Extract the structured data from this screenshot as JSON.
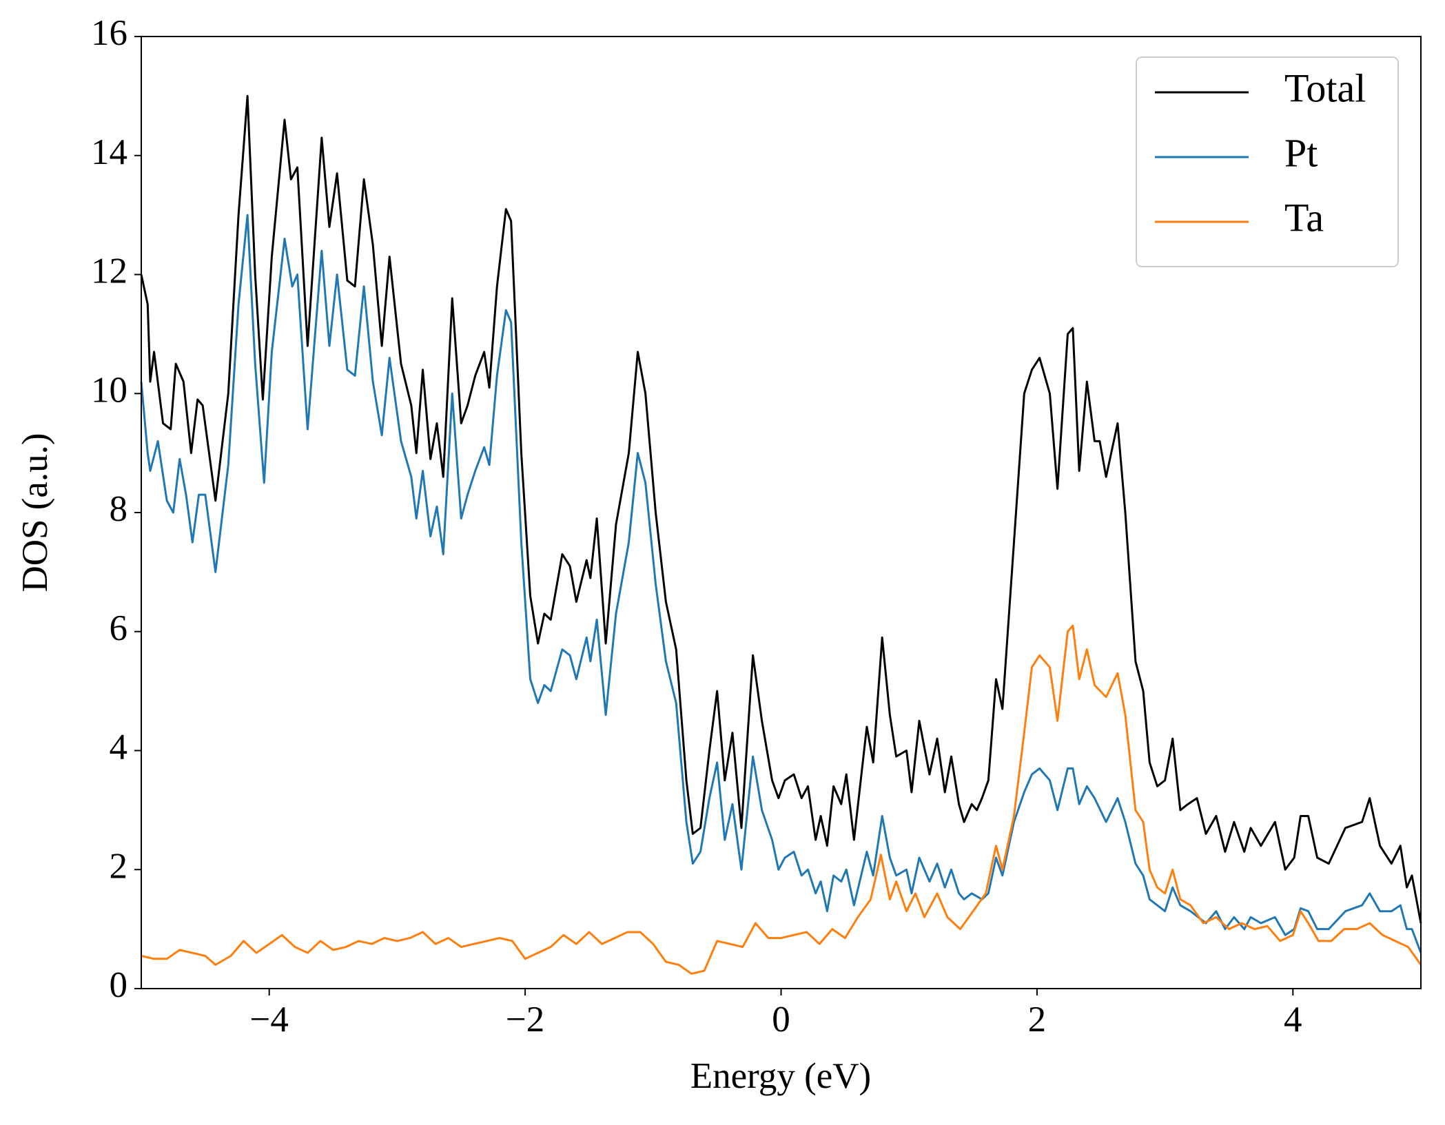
{
  "chart_data": {
    "type": "line",
    "xlabel": "Energy (eV)",
    "ylabel": "DOS (a.u.)",
    "xlim": [
      -5,
      5
    ],
    "ylim": [
      0,
      16
    ],
    "xticks": [
      {
        "value": -4,
        "label": "−4"
      },
      {
        "value": -2,
        "label": "−2"
      },
      0,
      2,
      4
    ],
    "yticks": [
      0,
      2,
      4,
      6,
      8,
      10,
      12,
      14,
      16
    ],
    "grid": false,
    "legend": "upper right",
    "series": [
      {
        "name": "Total",
        "color": "#000000",
        "x": [
          -5.0,
          -4.95,
          -4.93,
          -4.9,
          -4.83,
          -4.77,
          -4.73,
          -4.67,
          -4.61,
          -4.56,
          -4.52,
          -4.42,
          -4.32,
          -4.24,
          -4.17,
          -4.11,
          -4.05,
          -3.98,
          -3.88,
          -3.83,
          -3.78,
          -3.7,
          -3.59,
          -3.53,
          -3.47,
          -3.39,
          -3.33,
          -3.26,
          -3.19,
          -3.12,
          -3.06,
          -2.97,
          -2.89,
          -2.85,
          -2.8,
          -2.74,
          -2.69,
          -2.64,
          -2.57,
          -2.5,
          -2.45,
          -2.39,
          -2.32,
          -2.28,
          -2.22,
          -2.15,
          -2.11,
          -2.03,
          -1.96,
          -1.9,
          -1.85,
          -1.8,
          -1.71,
          -1.65,
          -1.6,
          -1.52,
          -1.49,
          -1.44,
          -1.37,
          -1.29,
          -1.19,
          -1.12,
          -1.06,
          -0.98,
          -0.9,
          -0.82,
          -0.74,
          -0.69,
          -0.63,
          -0.56,
          -0.5,
          -0.44,
          -0.38,
          -0.31,
          -0.22,
          -0.15,
          -0.07,
          -0.02,
          0.03,
          0.1,
          0.16,
          0.21,
          0.27,
          0.31,
          0.36,
          0.41,
          0.47,
          0.51,
          0.57,
          0.67,
          0.72,
          0.79,
          0.85,
          0.9,
          0.98,
          1.02,
          1.08,
          1.16,
          1.22,
          1.28,
          1.33,
          1.39,
          1.43,
          1.49,
          1.53,
          1.57,
          1.62,
          1.68,
          1.73,
          1.82,
          1.9,
          1.96,
          2.02,
          2.06,
          2.1,
          2.16,
          2.24,
          2.28,
          2.33,
          2.39,
          2.45,
          2.49,
          2.54,
          2.63,
          2.69,
          2.77,
          2.83,
          2.88,
          2.94,
          3.0,
          3.06,
          3.12,
          3.18,
          3.25,
          3.32,
          3.4,
          3.47,
          3.54,
          3.62,
          3.67,
          3.75,
          3.86,
          3.94,
          4.01,
          4.06,
          4.12,
          4.19,
          4.28,
          4.41,
          4.54,
          4.6,
          4.68,
          4.77,
          4.84,
          4.89,
          4.93,
          5.0
        ],
        "values": [
          12.0,
          11.5,
          10.2,
          10.7,
          9.5,
          9.4,
          10.5,
          10.2,
          9.0,
          9.9,
          9.8,
          8.2,
          10.0,
          13.0,
          15.0,
          12.0,
          9.9,
          12.3,
          14.6,
          13.6,
          13.8,
          10.8,
          14.3,
          12.8,
          13.7,
          11.9,
          11.8,
          13.6,
          12.5,
          10.8,
          12.3,
          10.5,
          9.8,
          9.0,
          10.4,
          8.9,
          9.5,
          8.6,
          11.6,
          9.5,
          9.8,
          10.3,
          10.7,
          10.1,
          11.8,
          13.1,
          12.9,
          9.0,
          6.6,
          5.8,
          6.3,
          6.2,
          7.3,
          7.1,
          6.5,
          7.2,
          6.9,
          7.9,
          5.8,
          7.8,
          9.0,
          10.7,
          10.0,
          8.0,
          6.5,
          5.7,
          3.5,
          2.6,
          2.7,
          4.0,
          5.0,
          3.5,
          4.3,
          2.7,
          5.6,
          4.5,
          3.5,
          3.2,
          3.5,
          3.6,
          3.2,
          3.4,
          2.5,
          2.9,
          2.4,
          3.4,
          3.1,
          3.6,
          2.5,
          4.4,
          3.8,
          5.9,
          4.6,
          3.9,
          4.0,
          3.3,
          4.5,
          3.6,
          4.2,
          3.3,
          3.9,
          3.1,
          2.8,
          3.1,
          3.0,
          3.2,
          3.5,
          5.2,
          4.7,
          7.5,
          10.0,
          10.4,
          10.6,
          10.3,
          10.0,
          8.4,
          11.0,
          11.1,
          8.7,
          10.2,
          9.2,
          9.2,
          8.6,
          9.5,
          8.0,
          5.5,
          5.0,
          3.8,
          3.4,
          3.5,
          4.2,
          3.0,
          3.1,
          3.2,
          2.6,
          2.9,
          2.3,
          2.8,
          2.3,
          2.7,
          2.4,
          2.8,
          2.0,
          2.2,
          2.9,
          2.9,
          2.2,
          2.1,
          2.7,
          2.8,
          3.2,
          2.4,
          2.1,
          2.4,
          1.7,
          1.9,
          1.1
        ]
      },
      {
        "name": "Pt",
        "color": "#1f77b4",
        "x": [
          -5.0,
          -4.95,
          -4.93,
          -4.87,
          -4.8,
          -4.75,
          -4.7,
          -4.65,
          -4.6,
          -4.55,
          -4.5,
          -4.42,
          -4.32,
          -4.24,
          -4.17,
          -4.11,
          -4.04,
          -3.98,
          -3.88,
          -3.82,
          -3.78,
          -3.7,
          -3.59,
          -3.53,
          -3.47,
          -3.39,
          -3.33,
          -3.26,
          -3.19,
          -3.12,
          -3.06,
          -2.97,
          -2.89,
          -2.85,
          -2.8,
          -2.74,
          -2.69,
          -2.64,
          -2.57,
          -2.5,
          -2.45,
          -2.39,
          -2.32,
          -2.28,
          -2.22,
          -2.15,
          -2.11,
          -2.03,
          -1.96,
          -1.9,
          -1.85,
          -1.8,
          -1.71,
          -1.65,
          -1.6,
          -1.52,
          -1.49,
          -1.44,
          -1.37,
          -1.29,
          -1.19,
          -1.12,
          -1.06,
          -0.98,
          -0.9,
          -0.82,
          -0.74,
          -0.69,
          -0.63,
          -0.56,
          -0.5,
          -0.44,
          -0.38,
          -0.31,
          -0.22,
          -0.15,
          -0.07,
          -0.02,
          0.03,
          0.1,
          0.16,
          0.21,
          0.27,
          0.31,
          0.36,
          0.41,
          0.47,
          0.51,
          0.57,
          0.67,
          0.72,
          0.79,
          0.85,
          0.9,
          0.98,
          1.02,
          1.08,
          1.16,
          1.22,
          1.28,
          1.33,
          1.39,
          1.43,
          1.49,
          1.57,
          1.62,
          1.68,
          1.73,
          1.82,
          1.9,
          1.96,
          2.02,
          2.1,
          2.16,
          2.24,
          2.28,
          2.33,
          2.39,
          2.45,
          2.54,
          2.63,
          2.69,
          2.77,
          2.83,
          2.88,
          2.94,
          3.0,
          3.06,
          3.12,
          3.2,
          3.32,
          3.4,
          3.47,
          3.54,
          3.62,
          3.67,
          3.75,
          3.86,
          3.94,
          4.01,
          4.06,
          4.12,
          4.19,
          4.28,
          4.41,
          4.54,
          4.6,
          4.68,
          4.77,
          4.84,
          4.89,
          4.93,
          5.0
        ],
        "values": [
          10.2,
          9.0,
          8.7,
          9.2,
          8.2,
          8.0,
          8.9,
          8.3,
          7.5,
          8.3,
          8.3,
          7.0,
          8.8,
          11.5,
          13.0,
          10.5,
          8.5,
          10.7,
          12.6,
          11.8,
          12.0,
          9.4,
          12.4,
          10.8,
          12.0,
          10.4,
          10.3,
          11.8,
          10.2,
          9.3,
          10.6,
          9.2,
          8.6,
          7.9,
          8.7,
          7.6,
          8.1,
          7.3,
          10.0,
          7.9,
          8.3,
          8.7,
          9.1,
          8.8,
          10.3,
          11.4,
          11.2,
          7.5,
          5.2,
          4.8,
          5.1,
          5.0,
          5.7,
          5.6,
          5.2,
          5.9,
          5.5,
          6.2,
          4.6,
          6.3,
          7.5,
          9.0,
          8.5,
          6.8,
          5.5,
          4.8,
          2.8,
          2.1,
          2.3,
          3.2,
          3.8,
          2.5,
          3.1,
          2.0,
          3.9,
          3.0,
          2.5,
          2.0,
          2.2,
          2.3,
          1.9,
          2.0,
          1.6,
          1.8,
          1.3,
          1.9,
          1.8,
          2.0,
          1.4,
          2.3,
          1.9,
          2.9,
          2.2,
          1.9,
          2.0,
          1.6,
          2.2,
          1.8,
          2.1,
          1.7,
          2.0,
          1.6,
          1.5,
          1.6,
          1.5,
          1.6,
          2.2,
          1.9,
          2.8,
          3.3,
          3.6,
          3.7,
          3.5,
          3.0,
          3.7,
          3.7,
          3.1,
          3.4,
          3.2,
          2.8,
          3.2,
          2.8,
          2.1,
          1.9,
          1.5,
          1.4,
          1.3,
          1.7,
          1.4,
          1.3,
          1.1,
          1.3,
          1.0,
          1.2,
          1.0,
          1.2,
          1.1,
          1.2,
          0.9,
          1.0,
          1.35,
          1.3,
          1.0,
          1.0,
          1.3,
          1.4,
          1.6,
          1.3,
          1.3,
          1.4,
          1.0,
          1.0,
          0.6
        ]
      },
      {
        "name": "Ta",
        "color": "#ff7f0e",
        "x": [
          -5.0,
          -4.9,
          -4.8,
          -4.7,
          -4.6,
          -4.5,
          -4.42,
          -4.3,
          -4.2,
          -4.1,
          -4.0,
          -3.9,
          -3.8,
          -3.7,
          -3.6,
          -3.5,
          -3.4,
          -3.3,
          -3.2,
          -3.1,
          -3.0,
          -2.9,
          -2.8,
          -2.7,
          -2.6,
          -2.5,
          -2.4,
          -2.3,
          -2.2,
          -2.1,
          -2.0,
          -1.9,
          -1.8,
          -1.7,
          -1.6,
          -1.5,
          -1.4,
          -1.3,
          -1.2,
          -1.1,
          -1.0,
          -0.9,
          -0.8,
          -0.7,
          -0.6,
          -0.5,
          -0.4,
          -0.3,
          -0.2,
          -0.1,
          0.0,
          0.1,
          0.2,
          0.3,
          0.4,
          0.5,
          0.6,
          0.7,
          0.78,
          0.85,
          0.9,
          0.98,
          1.05,
          1.12,
          1.22,
          1.3,
          1.4,
          1.5,
          1.6,
          1.68,
          1.73,
          1.82,
          1.9,
          1.96,
          2.02,
          2.1,
          2.16,
          2.24,
          2.28,
          2.33,
          2.39,
          2.45,
          2.54,
          2.63,
          2.69,
          2.77,
          2.83,
          2.88,
          2.94,
          3.0,
          3.06,
          3.12,
          3.2,
          3.3,
          3.4,
          3.5,
          3.6,
          3.7,
          3.8,
          3.9,
          4.0,
          4.06,
          4.12,
          4.2,
          4.3,
          4.4,
          4.5,
          4.6,
          4.7,
          4.8,
          4.9,
          5.0
        ],
        "values": [
          0.55,
          0.5,
          0.5,
          0.65,
          0.6,
          0.55,
          0.4,
          0.55,
          0.8,
          0.6,
          0.75,
          0.9,
          0.7,
          0.6,
          0.8,
          0.65,
          0.7,
          0.8,
          0.75,
          0.85,
          0.8,
          0.85,
          0.95,
          0.75,
          0.85,
          0.7,
          0.75,
          0.8,
          0.85,
          0.8,
          0.5,
          0.6,
          0.7,
          0.9,
          0.75,
          0.95,
          0.75,
          0.85,
          0.95,
          0.95,
          0.75,
          0.45,
          0.4,
          0.25,
          0.3,
          0.8,
          0.75,
          0.7,
          1.1,
          0.85,
          0.85,
          0.9,
          0.95,
          0.75,
          1.0,
          0.85,
          1.2,
          1.5,
          2.25,
          1.5,
          1.8,
          1.3,
          1.6,
          1.2,
          1.6,
          1.2,
          1.0,
          1.3,
          1.6,
          2.4,
          2.0,
          2.9,
          4.3,
          5.4,
          5.6,
          5.4,
          4.5,
          6.0,
          6.1,
          5.2,
          5.7,
          5.1,
          4.9,
          5.3,
          4.6,
          3.0,
          2.8,
          2.0,
          1.7,
          1.6,
          2.0,
          1.5,
          1.4,
          1.1,
          1.2,
          1.0,
          1.1,
          1.0,
          1.05,
          0.8,
          0.9,
          1.3,
          1.1,
          0.8,
          0.8,
          1.0,
          1.0,
          1.1,
          0.9,
          0.8,
          0.7,
          0.4
        ]
      }
    ]
  }
}
